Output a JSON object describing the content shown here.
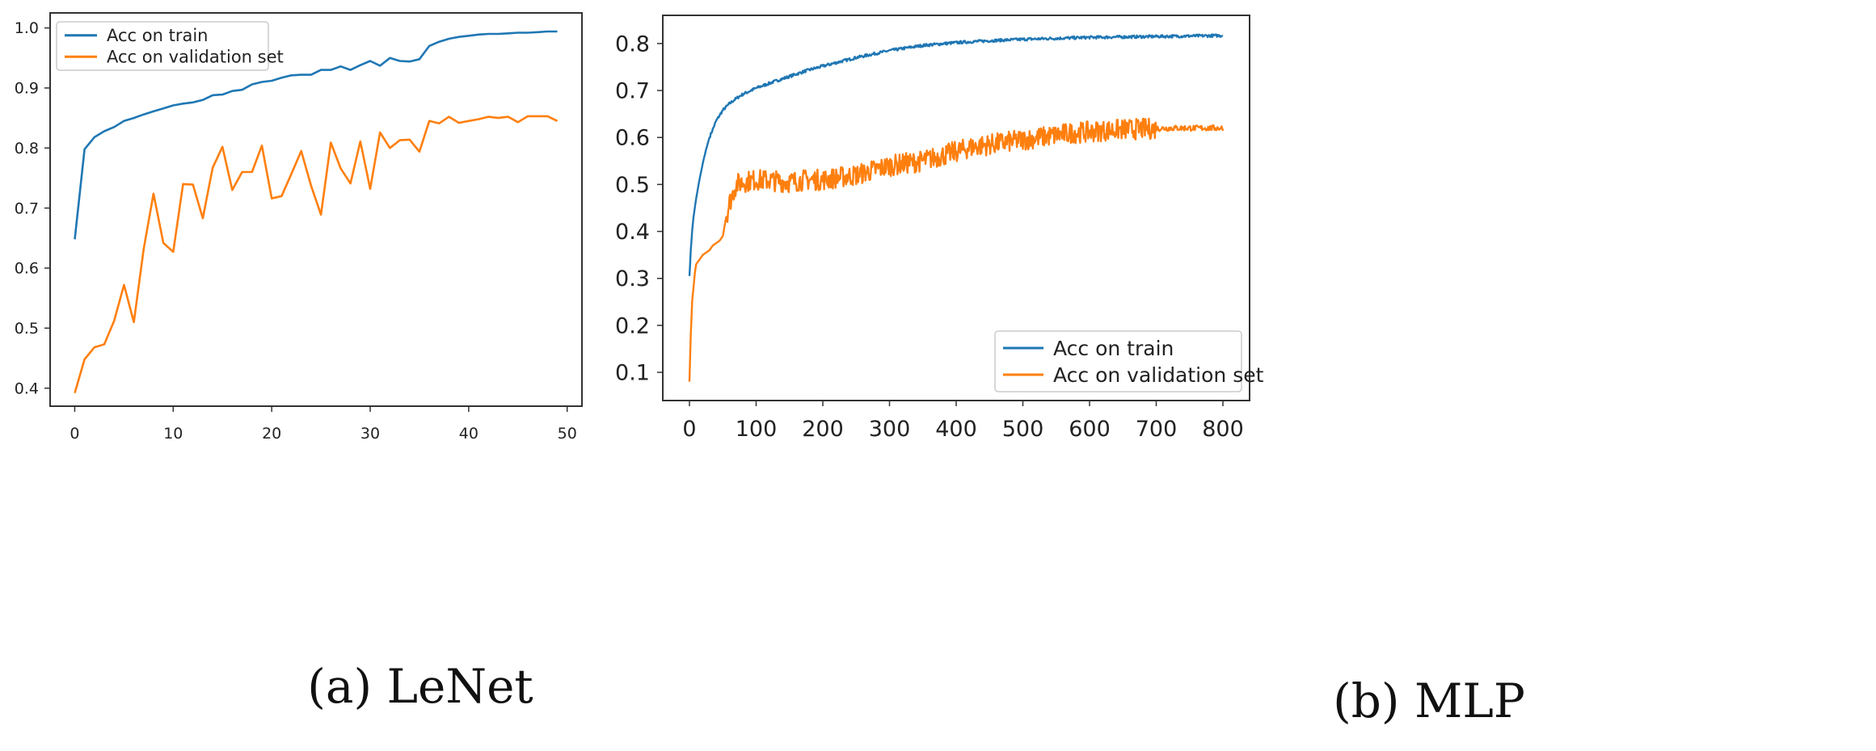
{
  "figure": {
    "captions": [
      "(a) LeNet",
      "(b) MLP"
    ]
  },
  "colors": {
    "train": "#1f77b4",
    "validation": "#ff7f0e",
    "axes": "#333333"
  },
  "chart_data": [
    {
      "type": "line",
      "caption": "(a) LeNet",
      "title": "",
      "xlabel": "",
      "ylabel": "",
      "xlim": [
        -2.5,
        51.5
      ],
      "ylim": [
        0.37,
        1.025
      ],
      "xticks": [
        0,
        10,
        20,
        30,
        40,
        50
      ],
      "yticks": [
        0.4,
        0.5,
        0.6,
        0.7,
        0.8,
        0.9,
        1.0
      ],
      "ytick_labels": [
        "0.4",
        "0.5",
        "0.6",
        "0.7",
        "0.8",
        "0.9",
        "1.0"
      ],
      "grid": false,
      "legend": "top-left",
      "series": [
        {
          "name": "Acc on train",
          "color": "#1f77b4",
          "x": [
            0,
            1,
            2,
            3,
            4,
            5,
            6,
            7,
            8,
            9,
            10,
            11,
            12,
            13,
            14,
            15,
            16,
            17,
            18,
            19,
            20,
            21,
            22,
            23,
            24,
            25,
            26,
            27,
            28,
            29,
            30,
            31,
            32,
            33,
            34,
            35,
            36,
            37,
            38,
            39,
            40,
            41,
            42,
            43,
            44,
            45,
            46,
            47,
            48,
            49
          ],
          "y": [
            0.648,
            0.798,
            0.818,
            0.828,
            0.835,
            0.845,
            0.85,
            0.856,
            0.861,
            0.866,
            0.871,
            0.874,
            0.876,
            0.88,
            0.888,
            0.889,
            0.895,
            0.897,
            0.906,
            0.91,
            0.912,
            0.917,
            0.921,
            0.922,
            0.922,
            0.93,
            0.93,
            0.936,
            0.93,
            0.938,
            0.945,
            0.937,
            0.95,
            0.945,
            0.944,
            0.948,
            0.97,
            0.977,
            0.982,
            0.985,
            0.987,
            0.989,
            0.99,
            0.99,
            0.991,
            0.992,
            0.992,
            0.993,
            0.994,
            0.994
          ]
        },
        {
          "name": "Acc on validation set",
          "color": "#ff7f0e",
          "x": [
            0,
            1,
            2,
            3,
            4,
            5,
            6,
            7,
            8,
            9,
            10,
            11,
            12,
            13,
            14,
            15,
            16,
            17,
            18,
            19,
            20,
            21,
            22,
            23,
            24,
            25,
            26,
            27,
            28,
            29,
            30,
            31,
            32,
            33,
            34,
            35,
            36,
            37,
            38,
            39,
            40,
            41,
            42,
            43,
            44,
            45,
            46,
            47,
            48,
            49
          ],
          "y": [
            0.392,
            0.448,
            0.468,
            0.473,
            0.512,
            0.572,
            0.51,
            0.632,
            0.724,
            0.642,
            0.627,
            0.74,
            0.739,
            0.683,
            0.767,
            0.802,
            0.73,
            0.76,
            0.76,
            0.804,
            0.716,
            0.72,
            0.757,
            0.795,
            0.737,
            0.689,
            0.809,
            0.766,
            0.741,
            0.811,
            0.732,
            0.826,
            0.8,
            0.813,
            0.814,
            0.794,
            0.845,
            0.841,
            0.852,
            0.842,
            0.845,
            0.848,
            0.852,
            0.85,
            0.852,
            0.843,
            0.853,
            0.853,
            0.853,
            0.845
          ]
        }
      ]
    },
    {
      "type": "line",
      "caption": "(b) MLP",
      "title": "",
      "xlabel": "",
      "ylabel": "",
      "xlim": [
        -40,
        840
      ],
      "ylim": [
        0.04,
        0.86
      ],
      "xticks": [
        0,
        100,
        200,
        300,
        400,
        500,
        600,
        700,
        800
      ],
      "yticks": [
        0.1,
        0.2,
        0.3,
        0.4,
        0.5,
        0.6,
        0.7,
        0.8
      ],
      "ytick_labels": [
        "0.1",
        "0.2",
        "0.3",
        "0.4",
        "0.5",
        "0.6",
        "0.7",
        "0.8"
      ],
      "grid": false,
      "legend": "bottom-right",
      "series": [
        {
          "name": "Acc on train",
          "color": "#1f77b4",
          "x": [
            0,
            1,
            2,
            4,
            6,
            8,
            10,
            15,
            20,
            25,
            30,
            40,
            50,
            60,
            70,
            80,
            100,
            125,
            150,
            175,
            200,
            250,
            300,
            350,
            400,
            450,
            500,
            550,
            600,
            650,
            700,
            750,
            800
          ],
          "y": [
            0.305,
            0.33,
            0.36,
            0.4,
            0.43,
            0.45,
            0.47,
            0.51,
            0.545,
            0.575,
            0.6,
            0.635,
            0.658,
            0.672,
            0.683,
            0.692,
            0.705,
            0.718,
            0.73,
            0.742,
            0.752,
            0.77,
            0.785,
            0.796,
            0.802,
            0.806,
            0.809,
            0.811,
            0.813,
            0.814,
            0.815,
            0.816,
            0.817
          ]
        },
        {
          "name": "Acc on validation set",
          "color": "#ff7f0e",
          "x": [
            0,
            2,
            4,
            6,
            8,
            10,
            15,
            20,
            25,
            30,
            35,
            40,
            45,
            50,
            55,
            60,
            65,
            70,
            80,
            100,
            125,
            150,
            175,
            200,
            225,
            250,
            275,
            300,
            325,
            350,
            375,
            400,
            425,
            450,
            475,
            500,
            525,
            550,
            575,
            600,
            625,
            650,
            675,
            700,
            725,
            750,
            775,
            800
          ],
          "y": [
            0.08,
            0.18,
            0.25,
            0.28,
            0.31,
            0.33,
            0.34,
            0.35,
            0.355,
            0.36,
            0.37,
            0.375,
            0.38,
            0.39,
            0.43,
            0.46,
            0.48,
            0.5,
            0.505,
            0.51,
            0.508,
            0.505,
            0.51,
            0.51,
            0.515,
            0.52,
            0.53,
            0.54,
            0.545,
            0.55,
            0.56,
            0.57,
            0.58,
            0.585,
            0.59,
            0.595,
            0.6,
            0.605,
            0.61,
            0.612,
            0.615,
            0.617,
            0.618,
            0.619,
            0.62,
            0.62,
            0.62,
            0.62
          ]
        }
      ]
    }
  ]
}
